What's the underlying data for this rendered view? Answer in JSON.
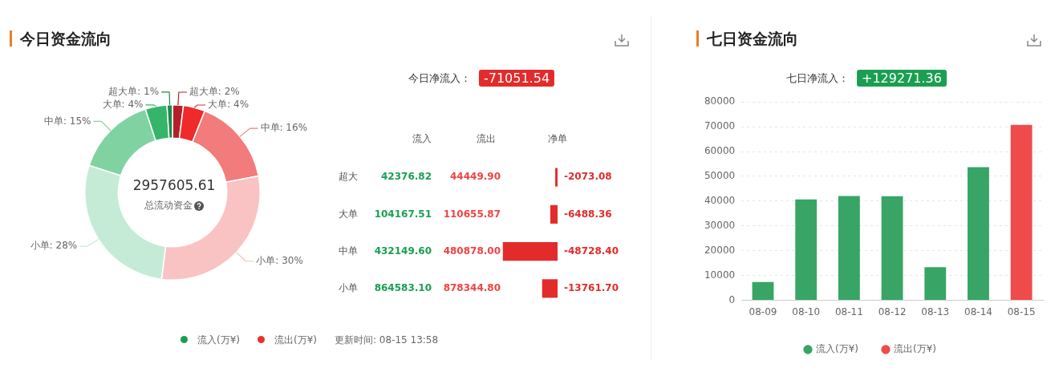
{
  "chart_data": [
    {
      "type": "donut",
      "title": "今日资金流向",
      "categories": [
        "超大单",
        "大单",
        "中单",
        "小单",
        "小单",
        "中单",
        "大单",
        "超大单"
      ],
      "colors": [
        "#b3202a",
        "#ee2a2a",
        "#f27b7b",
        "#f9c3c3",
        "#c5ebd6",
        "#80d3a1",
        "#34b56a",
        "#1e8a4a"
      ],
      "values": [
        2,
        4,
        16,
        30,
        28,
        15,
        4,
        1
      ],
      "value_labels": [
        "2%",
        "4%",
        "16%",
        "30%",
        "28%",
        "15%",
        "4%",
        "1%"
      ],
      "annotations": [
        "2957605.61",
        "总流动资金",
        "流入(万¥)",
        "流出(万¥)",
        "更新时间: 08-15 13:58"
      ]
    },
    {
      "type": "bar",
      "orientation": "horizontal",
      "categories": [
        "超大",
        "大单",
        "中单",
        "小单"
      ],
      "series": [
        {
          "name": "净单",
          "color": "#e32b2b",
          "values": [
            -2073.08,
            -6488.36,
            -48728.4,
            -13761.7
          ],
          "value_labels": [
            "-2073.08",
            "-6488.36",
            "-48728.40",
            "-13761.70"
          ]
        }
      ],
      "annotations": [
        "今日净流入：",
        "-71051.54",
        "流入",
        "流出",
        "42376.82",
        "44449.90",
        "104167.51",
        "110655.87",
        "432149.60",
        "480878.00",
        "864583.10",
        "878344.80"
      ]
    },
    {
      "type": "bar",
      "title": "七日资金流向",
      "categories": [
        "08-09",
        "08-10",
        "08-11",
        "08-12",
        "08-13",
        "08-14",
        "08-15"
      ],
      "series": [
        {
          "name": "流入(万¥)",
          "color": "#38a566",
          "values": [
            7400,
            40700,
            42100,
            42000,
            13400,
            53700,
            null
          ]
        },
        {
          "name": "流出(万¥)",
          "color": "#ef4b4b",
          "values": [
            null,
            null,
            null,
            null,
            null,
            null,
            70800
          ]
        }
      ],
      "ylim": [
        0,
        80000
      ],
      "yticks": [
        0,
        10000,
        20000,
        30000,
        40000,
        50000,
        60000,
        70000,
        80000
      ],
      "grid": "y",
      "legend": "bottom",
      "annotations": [
        "七日净流入：",
        "+129271.36"
      ]
    }
  ]
}
